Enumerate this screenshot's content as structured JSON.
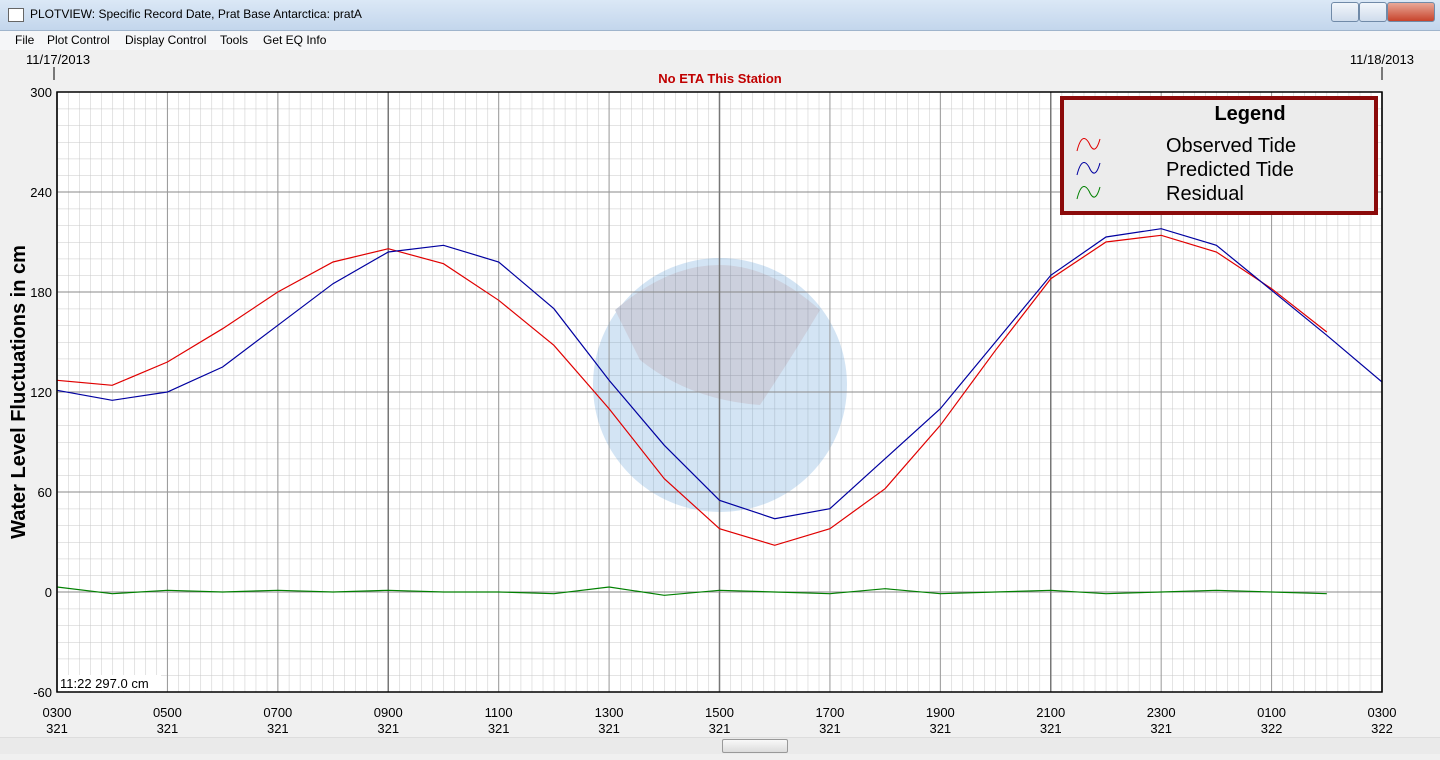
{
  "window": {
    "title": "PLOTVIEW: Specific Record Date, Prat Base Antarctica: pratA",
    "menu": [
      "File",
      "Plot Control",
      "Display Control",
      "Tools",
      "Get EQ Info"
    ]
  },
  "chart_data": {
    "type": "line",
    "title": "No ETA This Station",
    "start_date": "11/17/2013",
    "end_date": "11/18/2013",
    "y_label": "Water Level Fluctuations in cm",
    "readout": "11:22 297.0 cm",
    "legend_title": "Legend",
    "legend": "upper right",
    "x": [
      3,
      4,
      5,
      6,
      7,
      8,
      9,
      10,
      11,
      12,
      13,
      14,
      15,
      16,
      17,
      18,
      19,
      20,
      21,
      22,
      23,
      24,
      25,
      26,
      27
    ],
    "series": [
      {
        "name": "Observed Tide",
        "color": "#e00000",
        "values": [
          127,
          124,
          138,
          158,
          180,
          198,
          206,
          197,
          175,
          148,
          110,
          68,
          38,
          28,
          38,
          62,
          100,
          145,
          188,
          210,
          214,
          204,
          182,
          156,
          null
        ]
      },
      {
        "name": "Predicted Tide",
        "color": "#0000a0",
        "values": [
          121,
          115,
          120,
          135,
          160,
          185,
          204,
          208,
          198,
          170,
          127,
          88,
          55,
          44,
          50,
          80,
          110,
          150,
          190,
          213,
          218,
          208,
          181,
          154,
          126
        ]
      },
      {
        "name": "Residual",
        "color": "#008000",
        "values": [
          3,
          -1,
          1,
          0,
          1,
          0,
          1,
          0,
          0,
          -1,
          3,
          -2,
          1,
          0,
          -1,
          2,
          -1,
          0,
          1,
          -1,
          0,
          1,
          0,
          -1,
          null
        ]
      }
    ],
    "xlim": [
      3,
      27
    ],
    "xticks": [
      {
        "value": 3,
        "label": "0300"
      },
      {
        "value": 5,
        "label": "0500"
      },
      {
        "value": 7,
        "label": "0700"
      },
      {
        "value": 9,
        "label": "0900"
      },
      {
        "value": 11,
        "label": "1100"
      },
      {
        "value": 13,
        "label": "1300"
      },
      {
        "value": 15,
        "label": "1500"
      },
      {
        "value": 17,
        "label": "1700"
      },
      {
        "value": 19,
        "label": "1900"
      },
      {
        "value": 21,
        "label": "2100"
      },
      {
        "value": 23,
        "label": "2300"
      },
      {
        "value": 25,
        "label": "0100"
      },
      {
        "value": 27,
        "label": "0300"
      }
    ],
    "xtick_days": [
      "321",
      "321",
      "321",
      "321",
      "321",
      "321",
      "321",
      "321",
      "321",
      "321",
      "321",
      "322",
      "322"
    ],
    "ylim": [
      -60,
      300
    ],
    "yticks": [
      -60,
      0,
      60,
      120,
      180,
      240,
      300
    ],
    "grid": true
  }
}
